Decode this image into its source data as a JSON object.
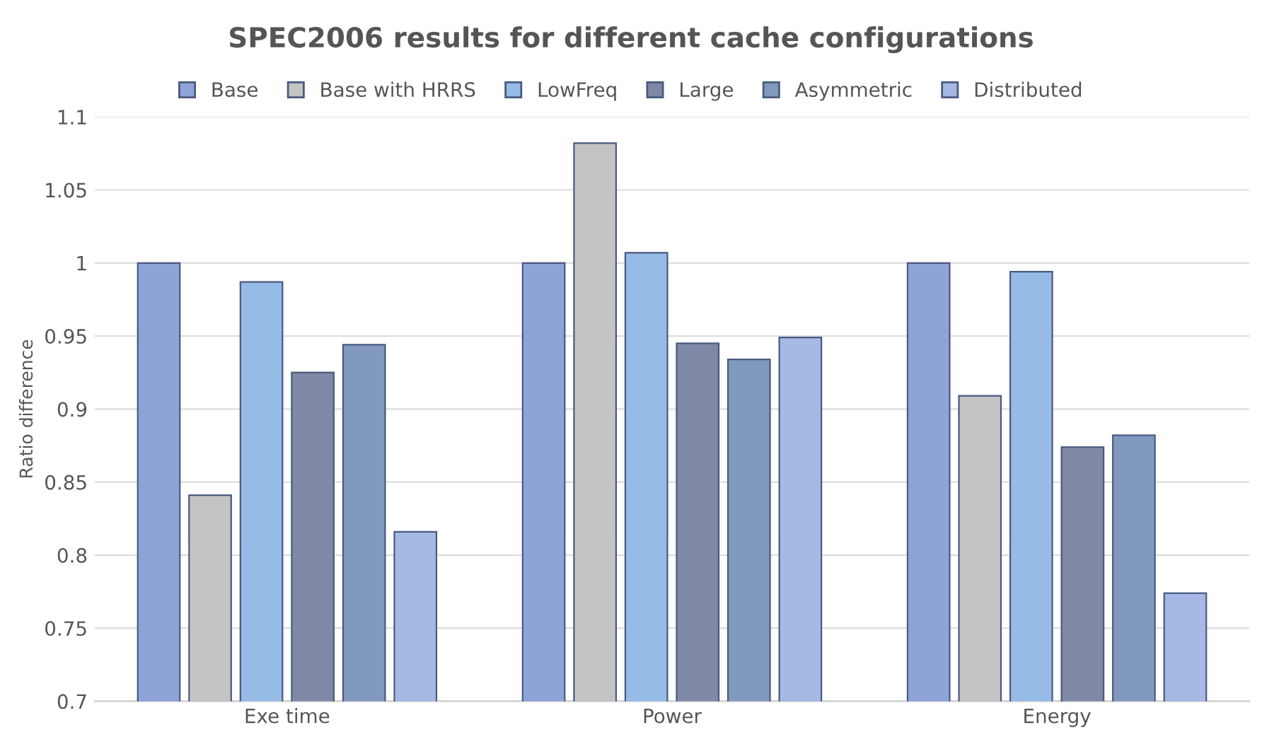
{
  "chart_data": {
    "type": "bar",
    "title": "SPEC2006 results for different cache configurations",
    "ylabel": "Ratio difference",
    "categories": [
      "Exe time",
      "Power",
      "Energy"
    ],
    "series": [
      {
        "name": "Base",
        "color": "#8ea4d8",
        "values": [
          1.0,
          1.0,
          1.0
        ]
      },
      {
        "name": "Base with HRRS",
        "color": "#c4c4c4",
        "values": [
          0.841,
          1.082,
          0.909
        ]
      },
      {
        "name": "LowFreq",
        "color": "#95bbe6",
        "values": [
          0.987,
          1.007,
          0.994
        ]
      },
      {
        "name": "Large",
        "color": "#7f89a6",
        "values": [
          0.925,
          0.945,
          0.874
        ]
      },
      {
        "name": "Asymmetric",
        "color": "#8299be",
        "values": [
          0.944,
          0.934,
          0.882
        ]
      },
      {
        "name": "Distributed",
        "color": "#a6b8e4",
        "values": [
          0.816,
          0.949,
          0.774
        ]
      }
    ],
    "ylim": [
      0.7,
      1.1
    ],
    "yticks": [
      0.7,
      0.75,
      0.8,
      0.85,
      0.9,
      0.95,
      1,
      1.05,
      1.1
    ],
    "grid": "y",
    "legend": "top"
  }
}
